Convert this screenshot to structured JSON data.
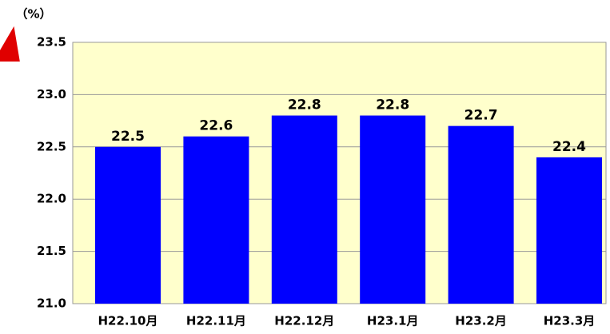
{
  "chart_data": {
    "type": "bar",
    "y_label": "（%）",
    "categories": [
      "H22.10月",
      "H22.11月",
      "H22.12月",
      "H23.1月",
      "H23.2月",
      "H23.3月"
    ],
    "values": [
      22.5,
      22.6,
      22.8,
      22.8,
      22.7,
      22.4
    ],
    "color": "#0000ff",
    "ylim": [
      21,
      23.5
    ],
    "yticks": [
      {
        "value": 21,
        "label": "21.0"
      },
      21.5,
      {
        "value": 22,
        "label": "22.0"
      },
      22.5,
      {
        "value": 23,
        "label": "23.0"
      },
      23.5
    ],
    "grid": true
  }
}
